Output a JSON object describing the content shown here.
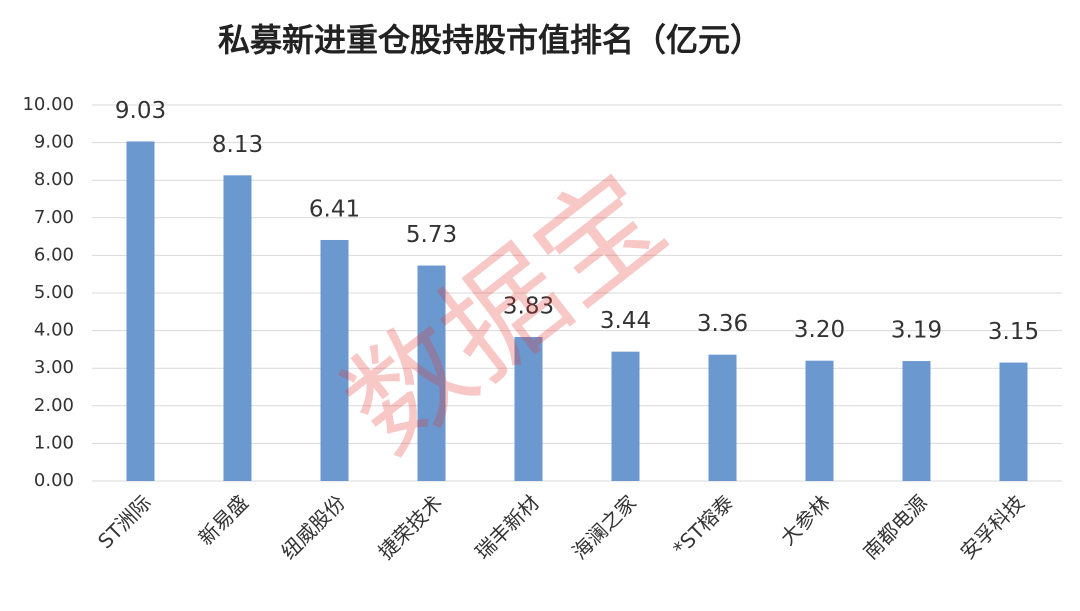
{
  "chart_data": {
    "type": "bar",
    "title": "私募新进重仓股持股市值排名（亿元）",
    "watermark": "数据宝",
    "categories": [
      "ST洲际",
      "新易盛",
      "纽威股份",
      "捷荣技术",
      "瑞丰新材",
      "海澜之家",
      "*ST榕泰",
      "大参林",
      "南都电源",
      "安孚科技"
    ],
    "values": [
      9.03,
      8.13,
      6.41,
      5.73,
      3.83,
      3.44,
      3.36,
      3.2,
      3.19,
      3.15
    ],
    "value_labels": [
      "9.03",
      "8.13",
      "6.41",
      "5.73",
      "3.83",
      "3.44",
      "3.36",
      "3.20",
      "3.19",
      "3.15"
    ],
    "color": "#6a98cf",
    "ylim": [
      0,
      10
    ],
    "yticks": [
      {
        "value": 0,
        "label": "0.00"
      },
      {
        "value": 1,
        "label": "1.00"
      },
      {
        "value": 2,
        "label": "2.00"
      },
      {
        "value": 3,
        "label": "3.00"
      },
      {
        "value": 4,
        "label": "4.00"
      },
      {
        "value": 5,
        "label": "5.00"
      },
      {
        "value": 6,
        "label": "6.00"
      },
      {
        "value": 7,
        "label": "7.00"
      },
      {
        "value": 8,
        "label": "8.00"
      },
      {
        "value": 9,
        "label": "9.00"
      },
      {
        "value": 10,
        "label": "10.00"
      }
    ],
    "grid": true
  }
}
